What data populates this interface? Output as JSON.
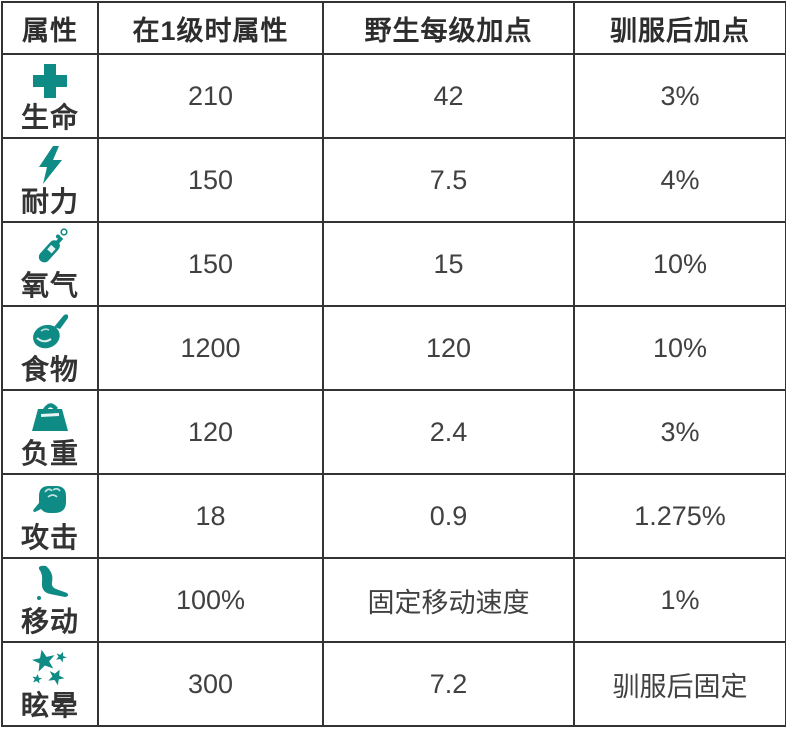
{
  "table": {
    "accent_color": "#0e8b84",
    "border_color": "#333333",
    "headers": [
      "属性",
      "在1级时属性",
      "野生每级加点",
      "驯服后加点"
    ],
    "rows": [
      {
        "icon": "health-icon",
        "label": "生命",
        "base": "210",
        "wild": "42",
        "tamed": "3%"
      },
      {
        "icon": "stamina-icon",
        "label": "耐力",
        "base": "150",
        "wild": "7.5",
        "tamed": "4%"
      },
      {
        "icon": "oxygen-icon",
        "label": "氧气",
        "base": "150",
        "wild": "15",
        "tamed": "10%"
      },
      {
        "icon": "food-icon",
        "label": "食物",
        "base": "1200",
        "wild": "120",
        "tamed": "10%"
      },
      {
        "icon": "weight-icon",
        "label": "负重",
        "base": "120",
        "wild": "2.4",
        "tamed": "3%"
      },
      {
        "icon": "attack-icon",
        "label": "攻击",
        "base": "18",
        "wild": "0.9",
        "tamed": "1.275%"
      },
      {
        "icon": "movement-icon",
        "label": "移动",
        "base": "100%",
        "wild": "固定移动速度",
        "tamed": "1%"
      },
      {
        "icon": "torpor-icon",
        "label": "眩晕",
        "base": "300",
        "wild": "7.2",
        "tamed": "驯服后固定"
      }
    ]
  }
}
